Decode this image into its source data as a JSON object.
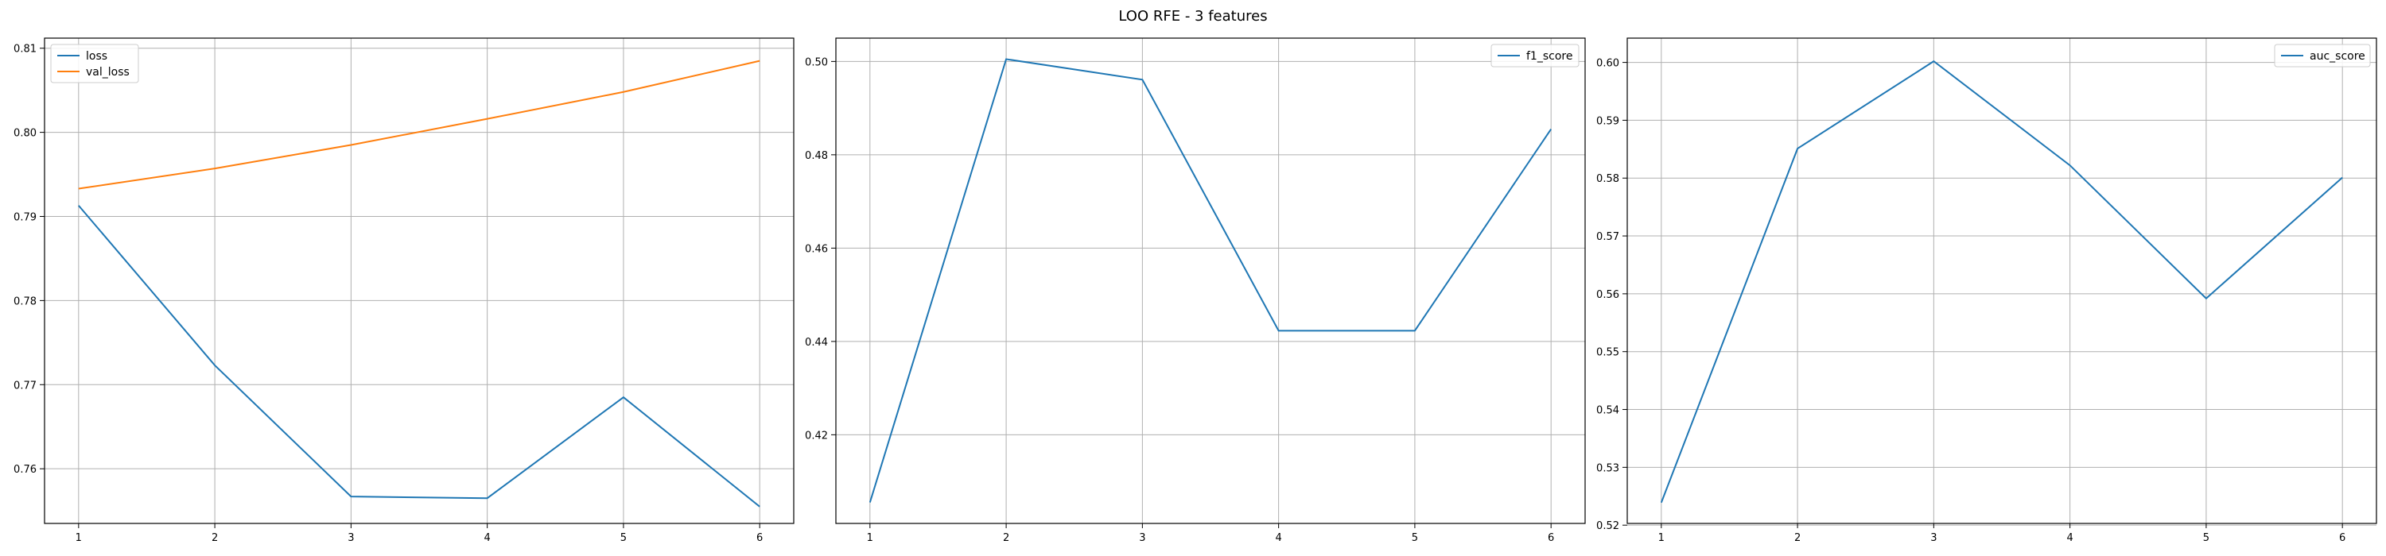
{
  "figure": {
    "title": "LOO RFE - 3 features"
  },
  "chart_data": [
    {
      "type": "line",
      "x": [
        1,
        2,
        3,
        4,
        5,
        6
      ],
      "xticks": [
        1,
        2,
        3,
        4,
        5,
        6
      ],
      "xlim": [
        0.75,
        6.25
      ],
      "ylim": [
        0.7535,
        0.8112
      ],
      "yticks": [
        0.76,
        0.77,
        0.78,
        0.79,
        0.8,
        0.81
      ],
      "ytick_labels": [
        "0.76",
        "0.77",
        "0.78",
        "0.79",
        "0.80",
        "0.81"
      ],
      "grid": true,
      "legend": "top-left",
      "series": [
        {
          "name": "loss",
          "color": "#1f77b4",
          "values": [
            0.7913,
            0.7723,
            0.7567,
            0.7565,
            0.7685,
            0.7555
          ]
        },
        {
          "name": "val_loss",
          "color": "#ff7f0e",
          "values": [
            0.7933,
            0.7957,
            0.7985,
            0.8016,
            0.8048,
            0.8085
          ]
        }
      ]
    },
    {
      "type": "line",
      "x": [
        1,
        2,
        3,
        4,
        5,
        6
      ],
      "xticks": [
        1,
        2,
        3,
        4,
        5,
        6
      ],
      "xlim": [
        0.75,
        6.25
      ],
      "ylim": [
        0.401,
        0.505
      ],
      "yticks": [
        0.42,
        0.44,
        0.46,
        0.48,
        0.5
      ],
      "ytick_labels": [
        "0.42",
        "0.44",
        "0.46",
        "0.48",
        "0.50"
      ],
      "grid": true,
      "legend": "top-right",
      "series": [
        {
          "name": "f1_score",
          "color": "#1f77b4",
          "values": [
            0.4055,
            0.5005,
            0.4961,
            0.4423,
            0.4423,
            0.4855
          ]
        }
      ]
    },
    {
      "type": "line",
      "x": [
        1,
        2,
        3,
        4,
        5,
        6
      ],
      "xticks": [
        1,
        2,
        3,
        4,
        5,
        6
      ],
      "xlim": [
        0.75,
        6.25
      ],
      "ylim": [
        0.5203,
        0.6042
      ],
      "yticks": [
        0.52,
        0.53,
        0.54,
        0.55,
        0.56,
        0.57,
        0.58,
        0.59,
        0.6
      ],
      "ytick_labels": [
        "0.52",
        "0.53",
        "0.54",
        "0.55",
        "0.56",
        "0.57",
        "0.58",
        "0.59",
        "0.60"
      ],
      "grid": true,
      "legend": "top-right",
      "series": [
        {
          "name": "auc_score",
          "color": "#1f77b4",
          "values": [
            0.5239,
            0.5851,
            0.6002,
            0.5822,
            0.5592,
            0.5801
          ]
        }
      ]
    }
  ]
}
